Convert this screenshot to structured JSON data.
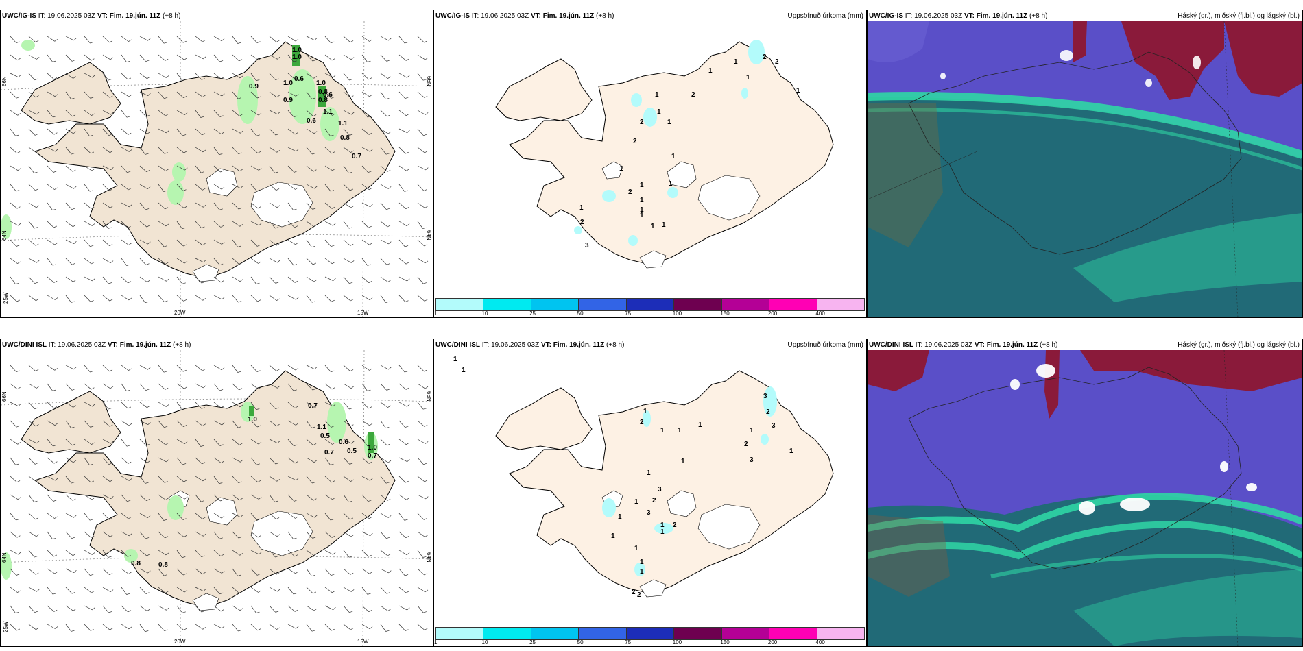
{
  "rows": [
    {
      "model": "UWC/IG-IS",
      "it_label": "IT:",
      "it_value": "19.06.2025 03Z",
      "vt_label": "VT:",
      "vt_value": "Fim. 19.jún. 11Z",
      "lead": "(+8 h)"
    },
    {
      "model": "UWC/DINI ISL",
      "it_label": "IT:",
      "it_value": "19.06.2025 03Z",
      "vt_label": "VT:",
      "vt_value": "Fim. 19.jún. 11Z",
      "lead": "(+8 h)"
    }
  ],
  "precip_title": "Uppsöfnuð úrkoma (mm)",
  "cloud_title": "Háský (gr.), miðský (fj.bl.) og lágský (bl.)",
  "axis_labels": {
    "lat66": "66N",
    "lat64": "64N",
    "lon25": "25W",
    "lon20": "20W",
    "lon15": "15W"
  },
  "colorbar": {
    "colors": [
      "#b3fbfb",
      "#00eaf0",
      "#00c4f0",
      "#3264e6",
      "#1c2db8",
      "#6e0050",
      "#b40096",
      "#ff00b4",
      "#f7b4f0"
    ],
    "labels": [
      "1",
      "10",
      "25",
      "50",
      "75",
      "100",
      "150",
      "200",
      "400"
    ]
  },
  "map_colors": {
    "land": "#f1e4d3",
    "precip_land": "#fdf1e4",
    "precip_shade": "#b3fbfb",
    "glacier": "#ffffff",
    "rain_light": "#b6f5b0",
    "rain_dark": "#3ca83c",
    "cloud_high": "#8a1a3a",
    "cloud_mid": "#5a4fc8",
    "cloud_low": "#1f6b73",
    "cloud_lowband": "#2fd6a4"
  },
  "top_rain_values": [
    "1.0",
    "1.0",
    "0.9",
    "1.0",
    "0.6",
    "1.0",
    "0.8",
    "0.6",
    "0.9",
    "0.8",
    "1.1",
    "0.6",
    "1.1",
    "0.8",
    "0.7"
  ],
  "bottom_rain_values": [
    "0.7",
    "1.0",
    "1.1",
    "0.5",
    "0.6",
    "0.5",
    "1.0",
    "0.7",
    "0.7",
    "0.8",
    "0.8"
  ],
  "top_precip_values": [
    "1",
    "1",
    "1",
    "2",
    "1",
    "1",
    "1",
    "2",
    "1",
    "2",
    "1",
    "1",
    "1",
    "2",
    "1",
    "2",
    "1",
    "1",
    "3",
    "1",
    "1",
    "2",
    "2",
    "1",
    "1"
  ],
  "bottom_precip_values": [
    "1",
    "1",
    "3",
    "2",
    "1",
    "2",
    "1",
    "1",
    "2",
    "1",
    "1",
    "1",
    "3",
    "3",
    "1",
    "1",
    "3",
    "1",
    "2",
    "1",
    "2",
    "3",
    "1",
    "1",
    "1",
    "1",
    "2",
    "2",
    "1",
    "1"
  ]
}
